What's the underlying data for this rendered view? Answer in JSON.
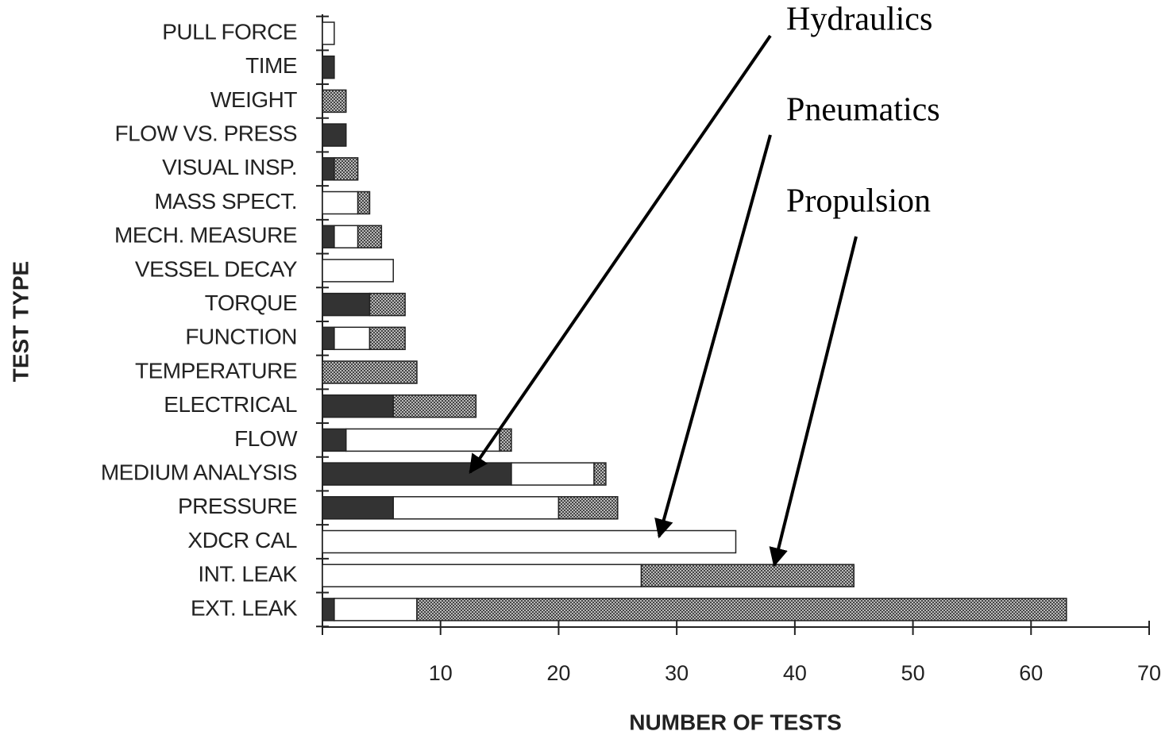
{
  "chart_data": {
    "type": "stacked-barh",
    "xlabel": "NUMBER OF TESTS",
    "ylabel": "TEST TYPE",
    "categories": [
      "PULL FORCE",
      "TIME",
      "WEIGHT",
      "FLOW VS. PRESS",
      "VISUAL  INSP.",
      "MASS SPECT.",
      "MECH. MEASURE",
      "VESSEL DECAY",
      "TORQUE",
      "FUNCTION",
      "TEMPERATURE",
      "ELECTRICAL",
      "FLOW",
      "MEDIUM ANALYSIS",
      "PRESSURE",
      "XDCR CAL",
      "INT. LEAK",
      "EXT. LEAK"
    ],
    "series": [
      {
        "name": "Hydraulics",
        "color": "#333333",
        "values": [
          0,
          1,
          0,
          2,
          1,
          0,
          1,
          0,
          4,
          1,
          0,
          6,
          2,
          16,
          6,
          0,
          0,
          1
        ]
      },
      {
        "name": "Pneumatics",
        "color": "#ffffff",
        "values": [
          1,
          0,
          0,
          0,
          0,
          3,
          2,
          6,
          0,
          3,
          0,
          0,
          13,
          7,
          14,
          35,
          27,
          7
        ]
      },
      {
        "name": "Propulsion",
        "color": "#444444",
        "pattern": "crosshatch",
        "values": [
          0,
          0,
          2,
          0,
          2,
          1,
          2,
          0,
          3,
          3,
          8,
          7,
          1,
          1,
          5,
          0,
          18,
          55
        ]
      }
    ],
    "xlim": [
      0,
      70
    ],
    "xticks": [
      10,
      20,
      30,
      40,
      50,
      60,
      70
    ]
  }
}
